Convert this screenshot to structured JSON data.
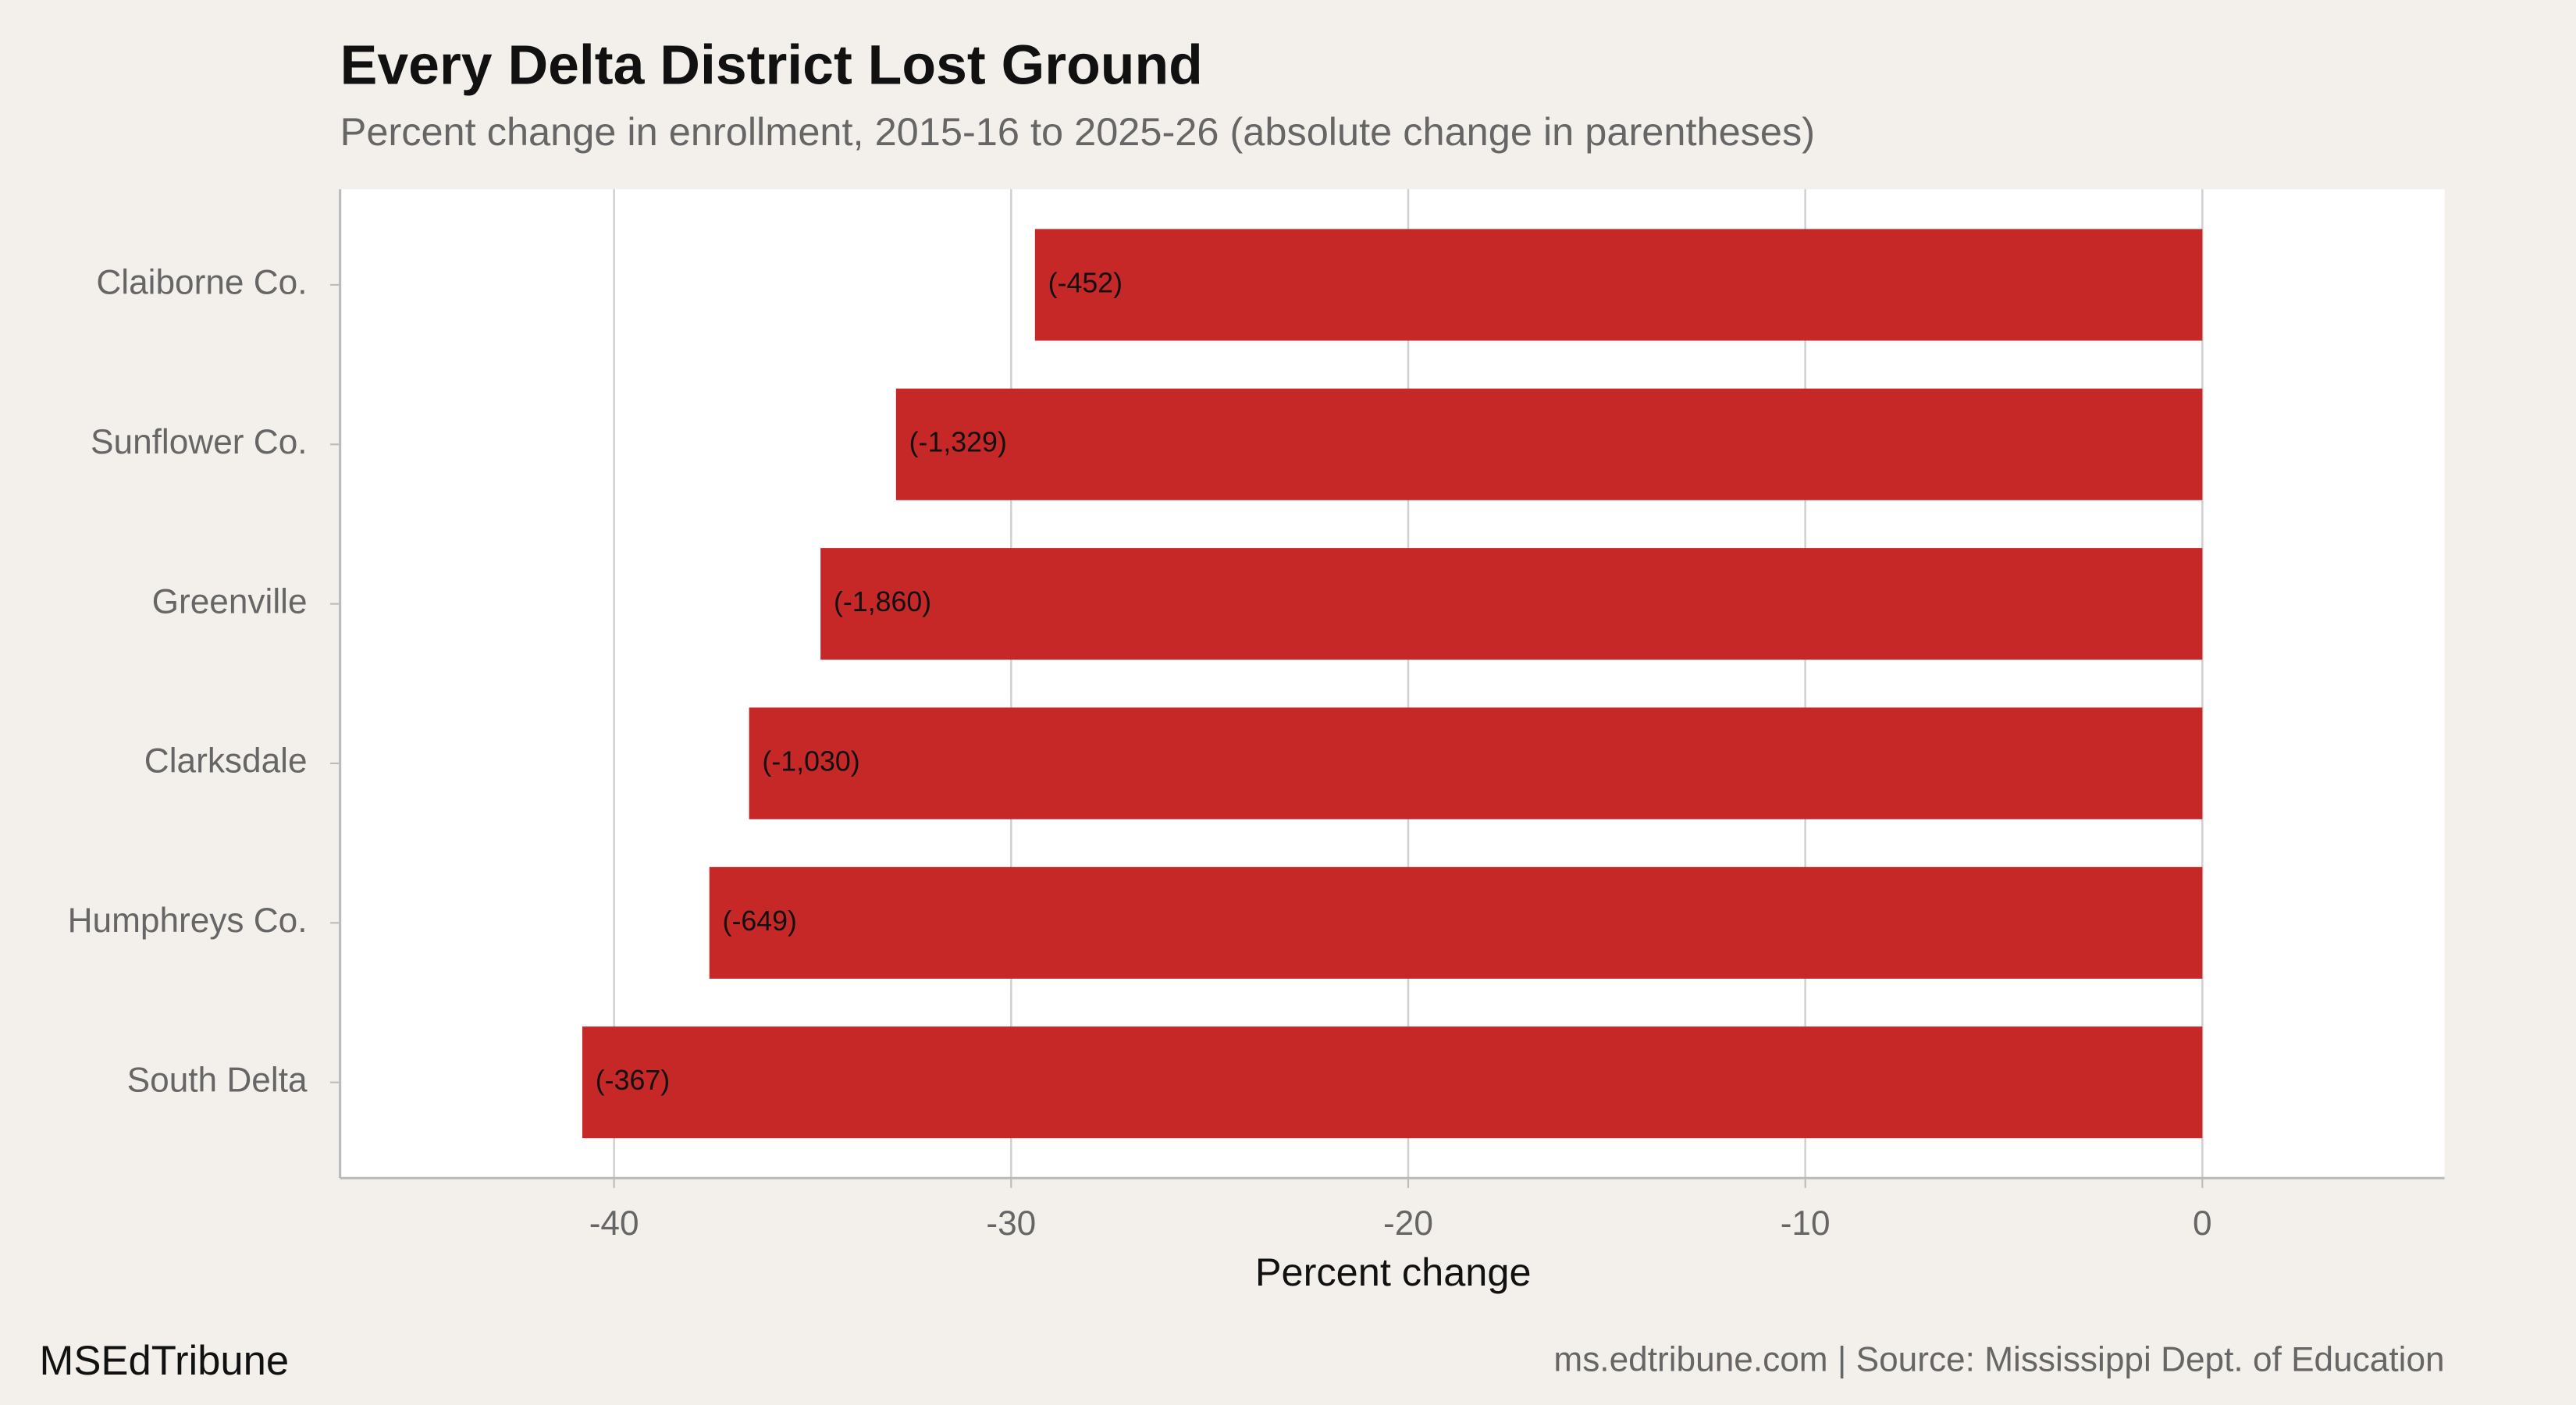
{
  "chart_data": {
    "type": "bar",
    "orientation": "horizontal",
    "title": "Every Delta District Lost Ground",
    "subtitle": "Percent change in enrollment, 2015-16 to 2025-26 (absolute change in parentheses)",
    "x_label": "Percent change",
    "categories": [
      "Claiborne Co.",
      "Sunflower Co.",
      "Greenville",
      "Clarksdale",
      "Humphreys Co.",
      "South Delta"
    ],
    "values": [
      -29.4,
      -32.9,
      -34.8,
      -36.6,
      -37.6,
      -40.8
    ],
    "absolute_change_labels": [
      "(-452)",
      "(-1,329)",
      "(-1,860)",
      "(-1,030)",
      "(-649)",
      "(-367)"
    ],
    "color": "#c62828",
    "xlim": [
      -46.9,
      6.1
    ],
    "xticks": [
      -40,
      -30,
      -20,
      -10,
      0
    ],
    "grid": true,
    "footer_left": "MSEdTribune",
    "footer_right": "ms.edtribune.com | Source: Mississippi Dept. of Education"
  }
}
